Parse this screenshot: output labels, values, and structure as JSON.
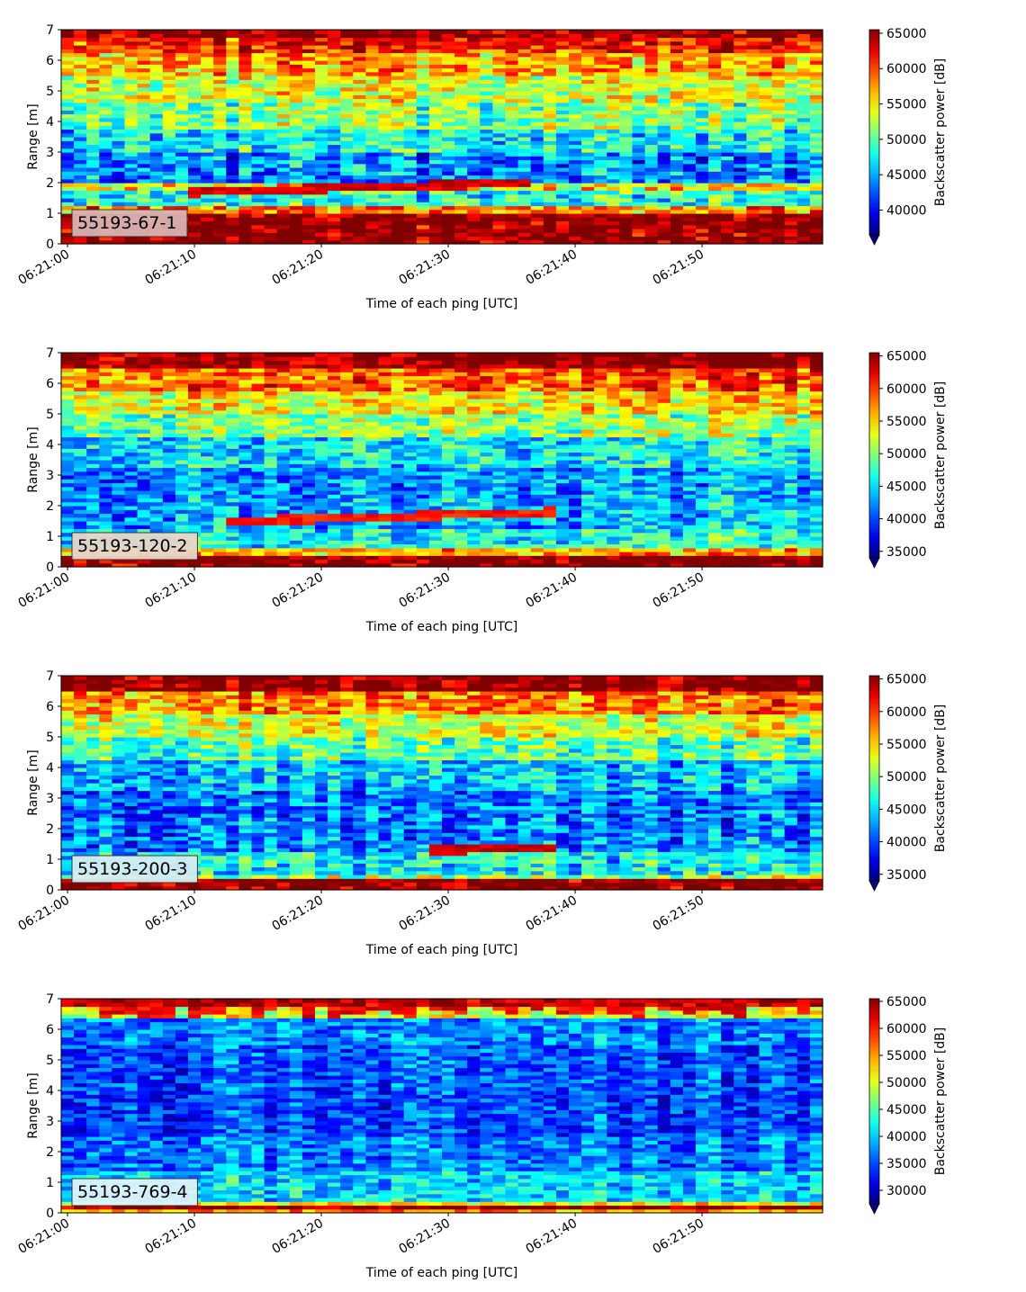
{
  "chart_data": [
    {
      "type": "heatmap",
      "label": "55193-67-1",
      "label_bg": "#d9b3b3",
      "xlabel": "Time of each ping [UTC]",
      "ylabel": "Range [m]",
      "xticks": [
        "06:21:00",
        "06:21:10",
        "06:21:20",
        "06:21:30",
        "06:21:40",
        "06:21:50"
      ],
      "xlim": [
        -0.5,
        59.5
      ],
      "yticks": [
        "0",
        "1",
        "2",
        "3",
        "4",
        "5",
        "6",
        "7"
      ],
      "ylim": [
        0,
        7
      ],
      "colorbar": {
        "label": "Backscatter power [dB]",
        "ticks": [
          "65000",
          "60000",
          "55000",
          "50000",
          "45000",
          "40000"
        ],
        "range": [
          36500,
          65500
        ],
        "colormap": "jet",
        "extend": "min"
      },
      "profile": [
        {
          "y_top": 0.25,
          "value": 65500
        },
        {
          "y_top": 1.05,
          "value": 65500
        },
        {
          "y_top": 1.2,
          "value": 58000
        },
        {
          "y_top": 1.7,
          "value": 48000
        },
        {
          "y_top": 2.0,
          "value": 55000
        },
        {
          "y_top": 3.0,
          "value": 44000
        },
        {
          "y_top": 3.8,
          "value": 47500
        },
        {
          "y_top": 4.6,
          "value": 51000
        },
        {
          "y_top": 5.5,
          "value": 53500
        },
        {
          "y_top": 6.2,
          "value": 57000
        },
        {
          "y_top": 6.7,
          "value": 61000
        },
        {
          "y_top": 7.0,
          "value": 65500
        }
      ],
      "feature": {
        "y": 1.7,
        "from": 10,
        "to": 36,
        "value": 63000
      }
    },
    {
      "type": "heatmap",
      "label": "55193-120-2",
      "label_bg": "#e8d6c8",
      "xlabel": "Time of each ping [UTC]",
      "ylabel": "Range [m]",
      "xticks": [
        "06:21:00",
        "06:21:10",
        "06:21:20",
        "06:21:30",
        "06:21:40",
        "06:21:50"
      ],
      "xlim": [
        -0.5,
        59.5
      ],
      "yticks": [
        "0",
        "1",
        "2",
        "3",
        "4",
        "5",
        "6",
        "7"
      ],
      "ylim": [
        0,
        7
      ],
      "colorbar": {
        "label": "Backscatter power [dB]",
        "ticks": [
          "65000",
          "60000",
          "55000",
          "50000",
          "45000",
          "40000",
          "35000"
        ],
        "range": [
          34000,
          65500
        ],
        "colormap": "jet",
        "extend": "min"
      },
      "profile": [
        {
          "y_top": 0.4,
          "value": 65500
        },
        {
          "y_top": 0.6,
          "value": 56000
        },
        {
          "y_top": 1.3,
          "value": 46000
        },
        {
          "y_top": 2.3,
          "value": 43500
        },
        {
          "y_top": 3.3,
          "value": 42500
        },
        {
          "y_top": 4.2,
          "value": 45500
        },
        {
          "y_top": 5.0,
          "value": 50000
        },
        {
          "y_top": 5.8,
          "value": 54000
        },
        {
          "y_top": 6.5,
          "value": 58500
        },
        {
          "y_top": 7.0,
          "value": 65500
        }
      ],
      "feature": {
        "y": 1.5,
        "from": 13,
        "to": 38,
        "value": 61000
      }
    },
    {
      "type": "heatmap",
      "label": "55193-200-3",
      "label_bg": "#d6eef2",
      "xlabel": "Time of each ping [UTC]",
      "ylabel": "Range [m]",
      "xticks": [
        "06:21:00",
        "06:21:10",
        "06:21:20",
        "06:21:30",
        "06:21:40",
        "06:21:50"
      ],
      "xlim": [
        -0.5,
        59.5
      ],
      "yticks": [
        "0",
        "1",
        "2",
        "3",
        "4",
        "5",
        "6",
        "7"
      ],
      "ylim": [
        0,
        7
      ],
      "colorbar": {
        "label": "Backscatter power [dB]",
        "ticks": [
          "65000",
          "60000",
          "55000",
          "50000",
          "45000",
          "40000",
          "35000"
        ],
        "range": [
          34000,
          65500
        ],
        "colormap": "jet",
        "extend": "min"
      },
      "profile": [
        {
          "y_top": 0.35,
          "value": 65500
        },
        {
          "y_top": 0.55,
          "value": 51000
        },
        {
          "y_top": 1.2,
          "value": 45500
        },
        {
          "y_top": 2.3,
          "value": 42000
        },
        {
          "y_top": 3.3,
          "value": 41500
        },
        {
          "y_top": 4.2,
          "value": 44000
        },
        {
          "y_top": 5.0,
          "value": 48500
        },
        {
          "y_top": 5.8,
          "value": 52500
        },
        {
          "y_top": 6.5,
          "value": 57500
        },
        {
          "y_top": 7.0,
          "value": 65500
        }
      ],
      "feature": {
        "y": 1.3,
        "from": 29,
        "to": 38,
        "value": 63000
      }
    },
    {
      "type": "heatmap",
      "label": "55193-769-4",
      "label_bg": "#dff4fb",
      "xlabel": "Time of each ping [UTC]",
      "ylabel": "Range [m]",
      "xticks": [
        "06:21:00",
        "06:21:10",
        "06:21:20",
        "06:21:30",
        "06:21:40",
        "06:21:50"
      ],
      "xlim": [
        -0.5,
        59.5
      ],
      "yticks": [
        "0",
        "1",
        "2",
        "3",
        "4",
        "5",
        "6",
        "7"
      ],
      "ylim": [
        0,
        7
      ],
      "colorbar": {
        "label": "Backscatter power [dB]",
        "ticks": [
          "65000",
          "60000",
          "55000",
          "50000",
          "45000",
          "40000",
          "35000",
          "30000"
        ],
        "range": [
          27500,
          65500
        ],
        "colormap": "jet",
        "extend": "min"
      },
      "profile": [
        {
          "y_top": 0.15,
          "value": 55000
        },
        {
          "y_top": 0.3,
          "value": 65500
        },
        {
          "y_top": 0.4,
          "value": 52000
        },
        {
          "y_top": 1.4,
          "value": 40500
        },
        {
          "y_top": 2.5,
          "value": 37000
        },
        {
          "y_top": 4.0,
          "value": 35000
        },
        {
          "y_top": 5.5,
          "value": 35500
        },
        {
          "y_top": 6.4,
          "value": 37500
        },
        {
          "y_top": 6.75,
          "value": 50000
        },
        {
          "y_top": 7.0,
          "value": 63000
        }
      ],
      "feature": null
    }
  ]
}
